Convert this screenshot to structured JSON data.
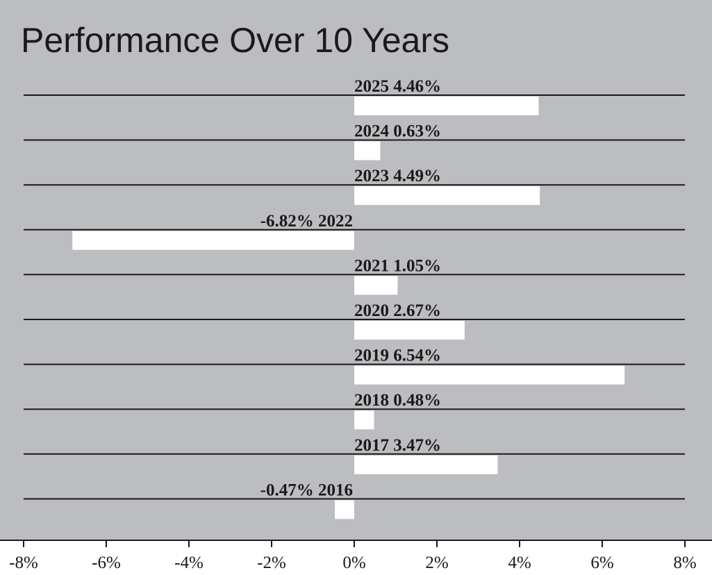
{
  "colors": {
    "panel_background": "#bcbdc0",
    "bar_fill": "#ffffff",
    "row_line": "#1a1a1a",
    "axis_line": "#1a1a1a",
    "text": "#1a1a1a",
    "page_background": "#ffffff"
  },
  "chart_data": {
    "type": "bar",
    "orientation": "horizontal",
    "title": "Performance Over 10 Years",
    "xlabel": "",
    "ylabel": "",
    "xlim": [
      -8,
      8
    ],
    "x_ticks": [
      -8,
      -6,
      -4,
      -2,
      0,
      2,
      4,
      6,
      8
    ],
    "x_tick_labels": [
      "-8%",
      "-6%",
      "-4%",
      "-2%",
      "0%",
      "2%",
      "4%",
      "6%",
      "8%"
    ],
    "grid": false,
    "legend": "none",
    "categories": [
      "2025",
      "2024",
      "2023",
      "2022",
      "2021",
      "2020",
      "2019",
      "2018",
      "2017",
      "2016"
    ],
    "values": [
      4.46,
      0.63,
      4.49,
      -6.82,
      1.05,
      2.67,
      6.54,
      0.48,
      3.47,
      -0.47
    ],
    "value_labels": [
      "4.46%",
      "0.63%",
      "4.49%",
      "-6.82%",
      "1.05%",
      "2.67%",
      "6.54%",
      "0.48%",
      "3.47%",
      "-0.47%"
    ]
  }
}
